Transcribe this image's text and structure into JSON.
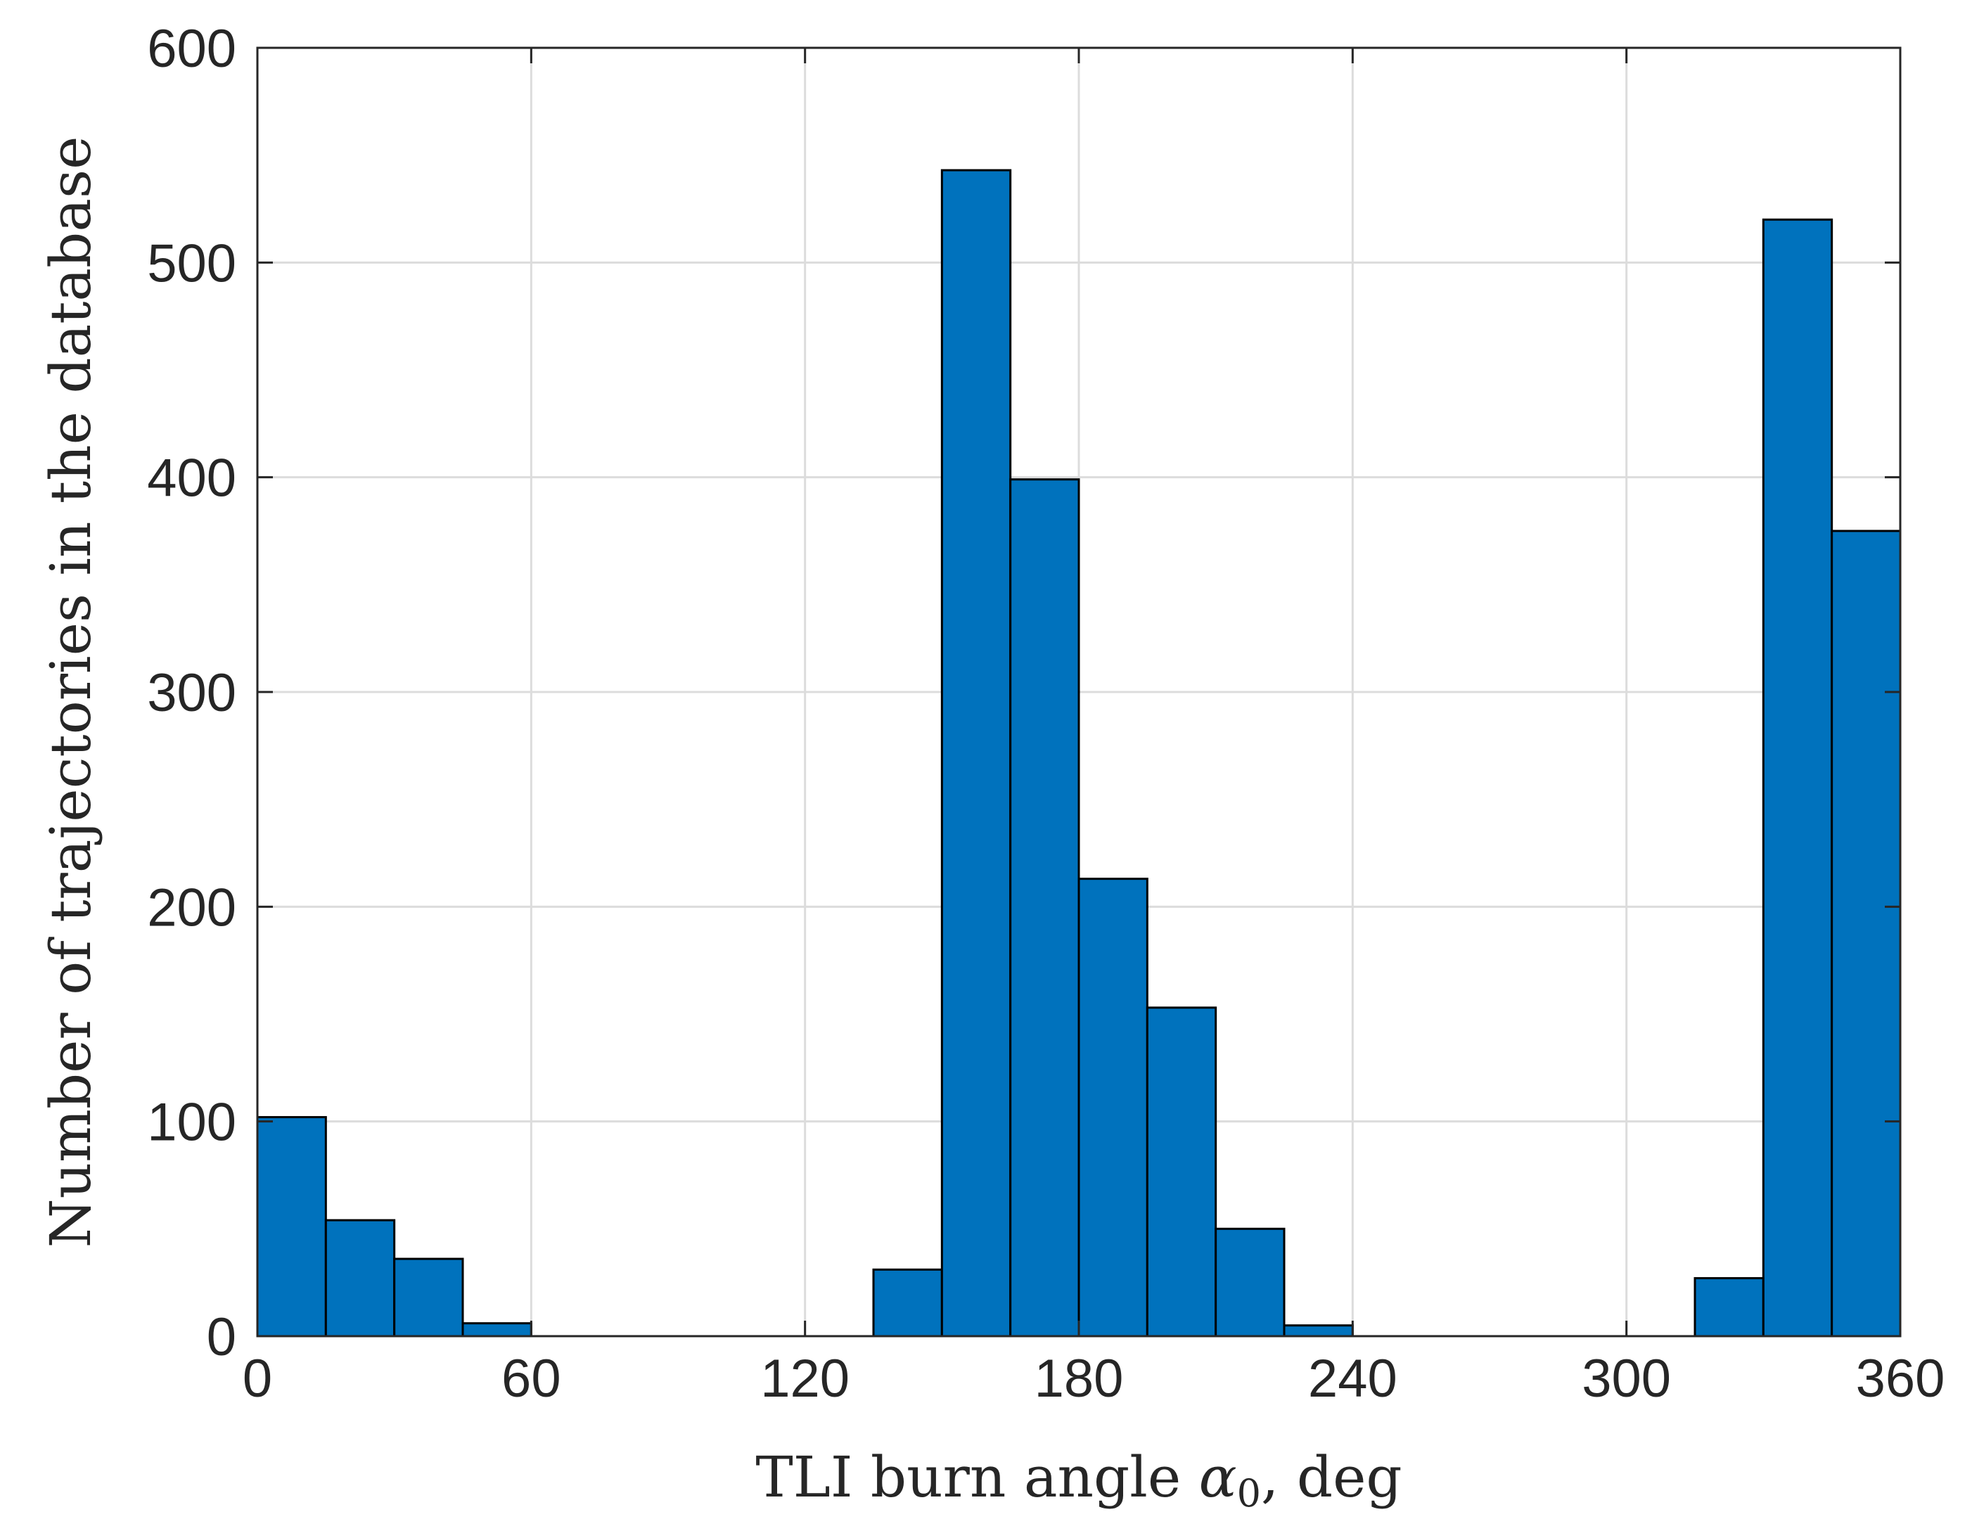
{
  "chart_data": {
    "type": "bar",
    "subtype": "histogram",
    "title": "",
    "xlabel_parts": {
      "before": "TLI burn angle ",
      "symbol": "α",
      "subscript": "0",
      "after": ", deg"
    },
    "ylabel": "Number of trajectories in the database",
    "xlim": [
      0,
      360
    ],
    "ylim": [
      0,
      600
    ],
    "xticks": [
      0,
      60,
      120,
      180,
      240,
      300,
      360
    ],
    "yticks": [
      0,
      100,
      200,
      300,
      400,
      500,
      600
    ],
    "grid": true,
    "bin_width": 15,
    "bin_edges": [
      0,
      15,
      30,
      45,
      60,
      75,
      90,
      105,
      120,
      135,
      150,
      165,
      180,
      195,
      210,
      225,
      240,
      255,
      270,
      285,
      300,
      315,
      330,
      345,
      360
    ],
    "values": [
      102,
      54,
      36,
      6,
      0,
      0,
      0,
      0,
      0,
      31,
      543,
      399,
      213,
      153,
      50,
      5,
      0,
      0,
      0,
      0,
      0,
      27,
      520,
      375
    ],
    "bar_color": "#0072bd",
    "bar_edge_color": "#000000",
    "grid_color": "#dcdcdc",
    "axis_color": "#262626"
  }
}
